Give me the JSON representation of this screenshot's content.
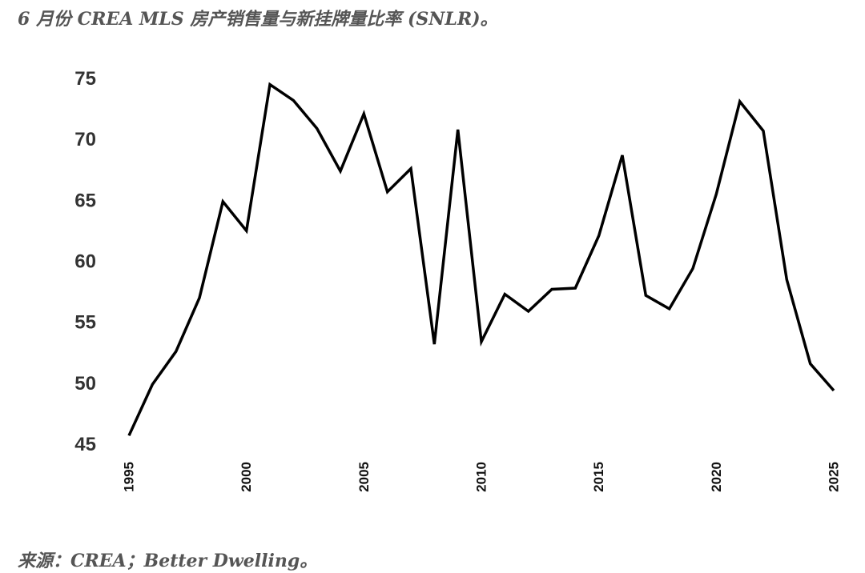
{
  "title": "6 月份 CREA MLS 房产销售量与新挂牌量比率 (SNLR)。",
  "source": "来源：CREA；Better Dwelling。",
  "chart_data": {
    "type": "line",
    "title": "6 月份 CREA MLS 房产销售量与新挂牌量比率 (SNLR)。",
    "xlabel": "",
    "ylabel": "",
    "ylim": [
      45,
      75
    ],
    "xlim": [
      1995,
      2025
    ],
    "grid": false,
    "yticks": [
      "75",
      "70",
      "65",
      "60",
      "55",
      "50",
      "45"
    ],
    "xticks": [
      "1995",
      "2000",
      "2005",
      "2010",
      "2015",
      "2020",
      "2025"
    ],
    "line_color": "#000000",
    "series": [
      {
        "name": "SNLR",
        "x": [
          1995,
          1996,
          1997,
          1998,
          1999,
          2000,
          2001,
          2002,
          2003,
          2004,
          2005,
          2006,
          2007,
          2008,
          2009,
          2010,
          2011,
          2012,
          2013,
          2014,
          2015,
          2016,
          2017,
          2018,
          2019,
          2020,
          2021,
          2022,
          2023,
          2024,
          2025
        ],
        "values": [
          45.7,
          49.9,
          52.6,
          57.0,
          64.9,
          62.5,
          74.5,
          73.2,
          70.9,
          67.4,
          72.1,
          65.7,
          67.6,
          53.2,
          70.8,
          53.4,
          57.3,
          55.9,
          57.7,
          57.8,
          62.1,
          68.7,
          57.2,
          56.1,
          59.4,
          65.5,
          73.1,
          70.7,
          58.5,
          51.6,
          49.4
        ]
      }
    ]
  }
}
